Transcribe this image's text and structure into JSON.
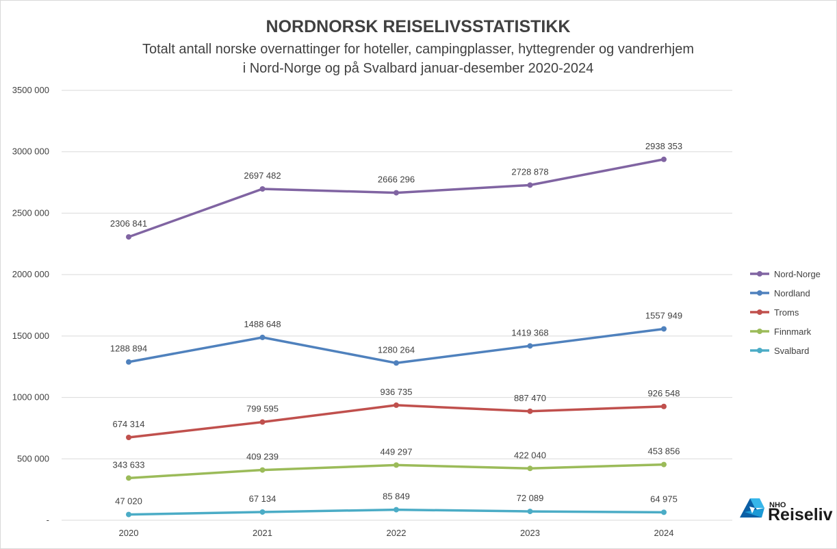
{
  "chart_data": {
    "type": "line",
    "title": "NORDNORSK REISELIVSSTATISTIKK",
    "subtitle": [
      "Totalt antall norske overnattinger for hoteller, campingplasser, hyttegrender og vandrerhjem",
      "i Nord-Norge og på Svalbard januar-desember 2020-2024"
    ],
    "categories": [
      "2020",
      "2021",
      "2022",
      "2023",
      "2024"
    ],
    "ylim": [
      0,
      3500000
    ],
    "y_ticks": [
      0,
      500000,
      1000000,
      1500000,
      2000000,
      2500000,
      3000000,
      3500000
    ],
    "y_tick_labels": [
      "-",
      "500 000",
      "1000 000",
      "1500 000",
      "2000 000",
      "2500 000",
      "3000 000",
      "3500 000"
    ],
    "grid": true,
    "legend_position": "right",
    "series": [
      {
        "name": "Nord-Norge",
        "color": "#8064a2",
        "values": [
          2306841,
          2697482,
          2666296,
          2728878,
          2938353
        ],
        "labels": [
          "2306 841",
          "2697 482",
          "2666 296",
          "2728 878",
          "2938 353"
        ]
      },
      {
        "name": "Nordland",
        "color": "#4f81bd",
        "values": [
          1288894,
          1488648,
          1280264,
          1419368,
          1557949
        ],
        "labels": [
          "1288 894",
          "1488 648",
          "1280 264",
          "1419 368",
          "1557 949"
        ]
      },
      {
        "name": "Troms",
        "color": "#c0504d",
        "values": [
          674314,
          799595,
          936735,
          887470,
          926548
        ],
        "labels": [
          "674 314",
          "799 595",
          "936 735",
          "887 470",
          "926 548"
        ]
      },
      {
        "name": "Finnmark",
        "color": "#9bbb59",
        "values": [
          343633,
          409239,
          449297,
          422040,
          453856
        ],
        "labels": [
          "343 633",
          "409 239",
          "449 297",
          "422 040",
          "453 856"
        ]
      },
      {
        "name": "Svalbard",
        "color": "#4bacc6",
        "values": [
          47020,
          67134,
          85849,
          72089,
          64975
        ],
        "labels": [
          "47 020",
          "67 134",
          "85 849",
          "72 089",
          "64 975"
        ]
      }
    ]
  },
  "logo": {
    "small_text": "NHO",
    "big_text": "Reiseliv",
    "color": "#1c9ad6",
    "icon": "nho-logo-icon"
  }
}
